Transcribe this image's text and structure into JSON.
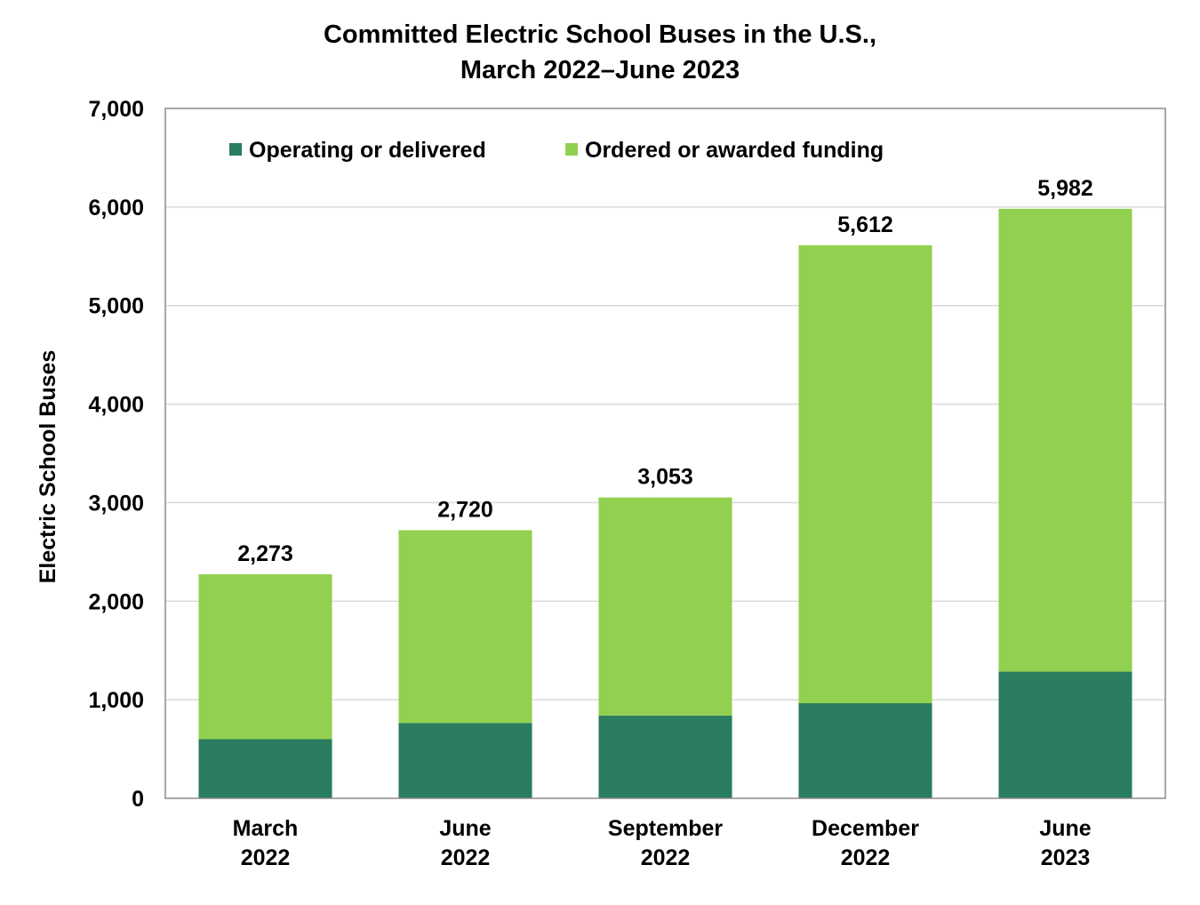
{
  "chart_data": {
    "type": "bar",
    "stacked": true,
    "title_line1": "Committed Electric School Buses in the U.S.,",
    "title_line2": "March 2022–June 2023",
    "xlabel": "",
    "ylabel": "Electric School Buses",
    "ylim": [
      0,
      7000
    ],
    "yticks": [
      0,
      1000,
      2000,
      3000,
      4000,
      5000,
      6000,
      7000
    ],
    "ytick_labels": [
      "0",
      "1,000",
      "2,000",
      "3,000",
      "4,000",
      "5,000",
      "6,000",
      "7,000"
    ],
    "grid": true,
    "legend_placement": "top",
    "categories": [
      [
        "March",
        "2022"
      ],
      [
        "June",
        "2022"
      ],
      [
        "September",
        "2022"
      ],
      [
        "December",
        "2022"
      ],
      [
        "June",
        "2023"
      ]
    ],
    "series": [
      {
        "name": "Operating or delivered",
        "color": "#2a7d5f",
        "values": [
          600,
          765,
          840,
          965,
          1285
        ]
      },
      {
        "name": "Ordered or awarded funding",
        "color": "#92d050",
        "values": [
          1673,
          1955,
          2213,
          4647,
          4697
        ]
      }
    ],
    "totals": [
      2273,
      2720,
      3053,
      5612,
      5982
    ],
    "total_labels": [
      "2,273",
      "2,720",
      "3,053",
      "5,612",
      "5,982"
    ]
  }
}
